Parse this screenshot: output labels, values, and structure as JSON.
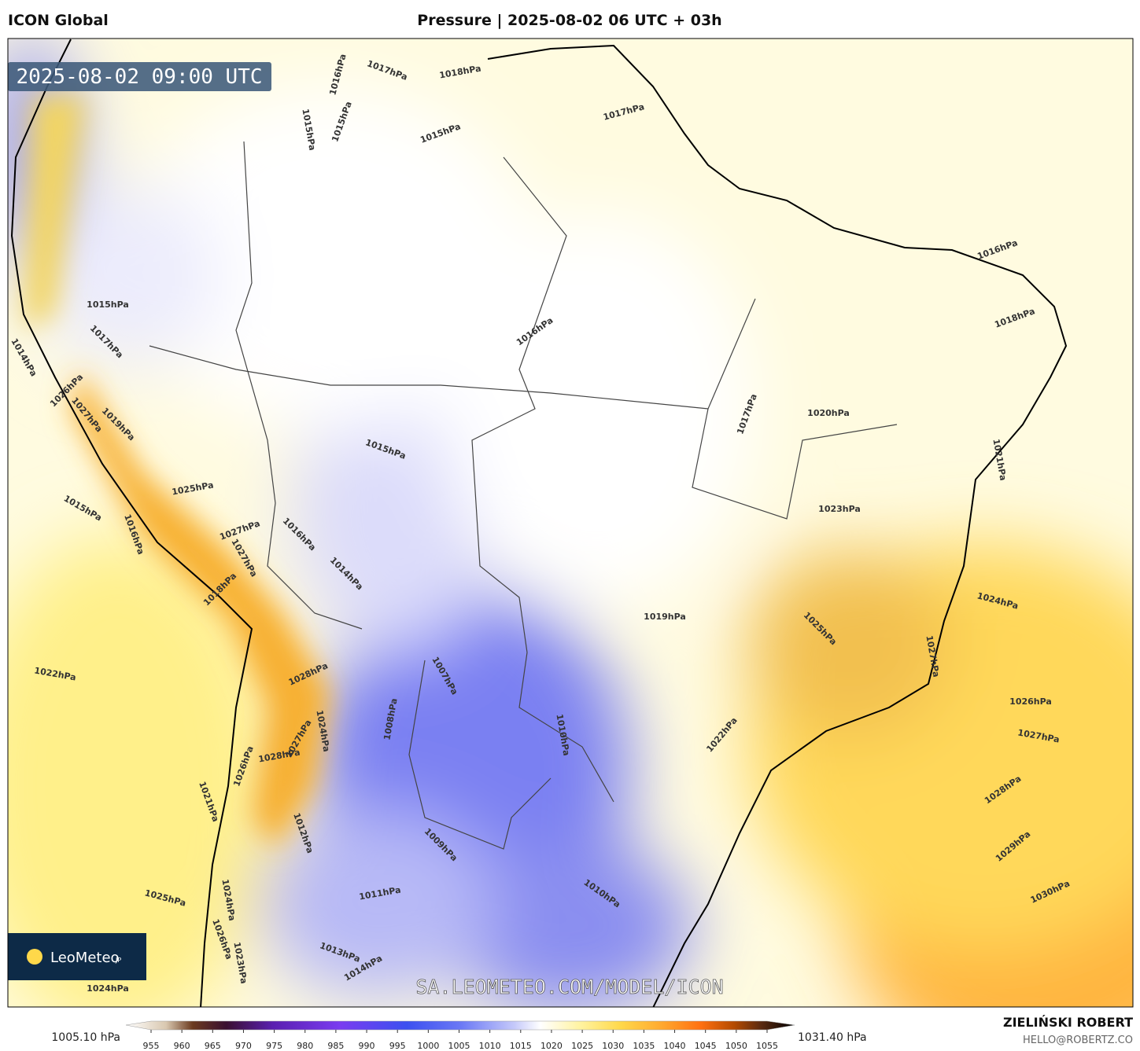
{
  "header": {
    "model": "ICON Global",
    "title": "Pressure | 2025-08-02 06 UTC + 03h"
  },
  "map": {
    "valid_time": "2025-08-02 09:00 UTC",
    "logo": "LeoMeteo",
    "logo_suffix": "JP",
    "watermark": "SA.LEOMETEO.COM/MODEL/ICON",
    "contour_labels": [
      "1017hPa",
      "1018hPa",
      "1016hPa",
      "1015hPa",
      "1015hPa",
      "1015hPa",
      "1017hPa",
      "1016hPa",
      "1018hPa",
      "1015hPa",
      "1016hPa",
      "1017hPa",
      "1020hPa",
      "1021hPa",
      "1023hPa",
      "1015hPa",
      "1014hPa",
      "1017hPa",
      "1026hPa",
      "1027hPa",
      "1019hPa",
      "1025hPa",
      "1015hPa",
      "1016hPa",
      "1027hPa",
      "1016hPa",
      "1014hPa",
      "1027hPa",
      "1018hPa",
      "1019hPa",
      "1024hPa",
      "1025hPa",
      "1027hPa",
      "1022hPa",
      "1028hPa",
      "1007hPa",
      "1026hPa",
      "1027hPa",
      "1008hPa",
      "1024hPa",
      "1027hPa",
      "1010hPa",
      "1022hPa",
      "1026hPa",
      "1028hPa",
      "1021hPa",
      "1028hPa",
      "1012hPa",
      "1009hPa",
      "1029hPa",
      "1011hPa",
      "1010hPa",
      "1025hPa",
      "1030hPa",
      "1024hPa",
      "1026hPa",
      "1023hPa",
      "1013hPa",
      "1014hPa",
      "1024hPa"
    ]
  },
  "colorbar": {
    "min_label": "1005.10 hPa",
    "max_label": "1031.40 hPa",
    "ticks": [
      955,
      960,
      965,
      970,
      975,
      980,
      985,
      990,
      995,
      1000,
      1005,
      1010,
      1015,
      1020,
      1025,
      1030,
      1035,
      1040,
      1045,
      1050,
      1055
    ]
  },
  "footer": {
    "author": "ZIELIŃSKI ROBERT",
    "email": "HELLO@ROBERTZ.CO"
  }
}
